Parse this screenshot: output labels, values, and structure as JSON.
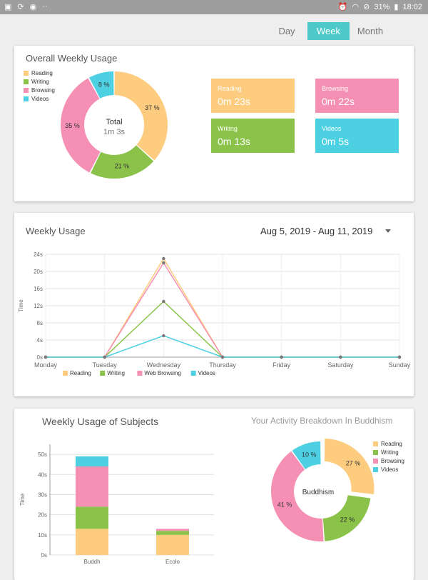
{
  "status": {
    "battery": "31%",
    "time": "18:02"
  },
  "period_tabs": [
    {
      "label": "Day"
    },
    {
      "label": "Week",
      "active": true
    },
    {
      "label": "Month"
    }
  ],
  "overall": {
    "title": "Overall Weekly Usage",
    "center_title": "Total",
    "center_value": "1m 3s",
    "legend": [
      "Reading",
      "Writing",
      "Browsing",
      "Videos"
    ],
    "stats": [
      {
        "label": "Reading",
        "value": "0m 23s",
        "color": "#fdcc7f"
      },
      {
        "label": "Browsing",
        "value": "0m 22s",
        "color": "#f590b4"
      },
      {
        "label": "Writing",
        "value": "0m 13s",
        "color": "#8bc34a"
      },
      {
        "label": "Videos",
        "value": "0m 5s",
        "color": "#4dd0e1"
      }
    ]
  },
  "weekly": {
    "title": "Weekly Usage",
    "date_range": "Aug 5, 2019 - Aug 11, 2019"
  },
  "subjects": {
    "title": "Weekly Usage of Subjects",
    "breakdown_title": "Your Activity Breakdown In Buddhism",
    "center_label": "Buddhism",
    "legend": [
      "Reading",
      "Writing",
      "Browsing",
      "Videos"
    ]
  },
  "colors": {
    "reading": "#fdcc7f",
    "writing": "#8bc34a",
    "browsing": "#f590b4",
    "videos": "#4dd0e1",
    "accent": "#4dc9c9"
  },
  "chart_data": [
    {
      "type": "pie",
      "title": "Overall Weekly Usage",
      "labels": [
        "Reading",
        "Writing",
        "Browsing",
        "Videos"
      ],
      "values": [
        37,
        21,
        35,
        8
      ],
      "display": [
        "37 %",
        "21 %",
        "35 %",
        "8 %"
      ]
    },
    {
      "type": "line",
      "title": "Weekly Usage",
      "ylabel": "Time",
      "categories": [
        "Monday",
        "Tuesday",
        "Wednesday",
        "Thursday",
        "Friday",
        "Saturday",
        "Sunday"
      ],
      "yticks": [
        "0s",
        "4s",
        "8s",
        "12s",
        "16s",
        "20s",
        "24s"
      ],
      "ylim": [
        0,
        24
      ],
      "series": [
        {
          "name": "Reading",
          "values": [
            0,
            0,
            23,
            0,
            0,
            0,
            0
          ]
        },
        {
          "name": "Writing",
          "values": [
            0,
            0,
            13,
            0,
            0,
            0,
            0
          ]
        },
        {
          "name": "Web Browsing",
          "values": [
            0,
            0,
            22,
            0,
            0,
            0,
            0
          ]
        },
        {
          "name": "Videos",
          "values": [
            0,
            0,
            5,
            0,
            0,
            0,
            0
          ]
        }
      ]
    },
    {
      "type": "bar",
      "title": "Weekly Usage of Subjects",
      "ylabel": "Time",
      "categories": [
        "Buddh",
        "Ecolo"
      ],
      "yticks": [
        "0s",
        "10s",
        "20s",
        "30s",
        "40s",
        "50s"
      ],
      "ylim": [
        0,
        55
      ],
      "series": [
        {
          "name": "Reading",
          "values": [
            13,
            10
          ]
        },
        {
          "name": "Writing",
          "values": [
            11,
            2
          ]
        },
        {
          "name": "Browsing",
          "values": [
            20,
            1
          ]
        },
        {
          "name": "Videos",
          "values": [
            5,
            0
          ]
        }
      ]
    },
    {
      "type": "pie",
      "title": "Your Activity Breakdown In Buddhism",
      "labels": [
        "Reading",
        "Writing",
        "Browsing",
        "Videos"
      ],
      "values": [
        27,
        22,
        41,
        10
      ],
      "display": [
        "27 %",
        "22 %",
        "41 %",
        "10 %"
      ]
    }
  ]
}
